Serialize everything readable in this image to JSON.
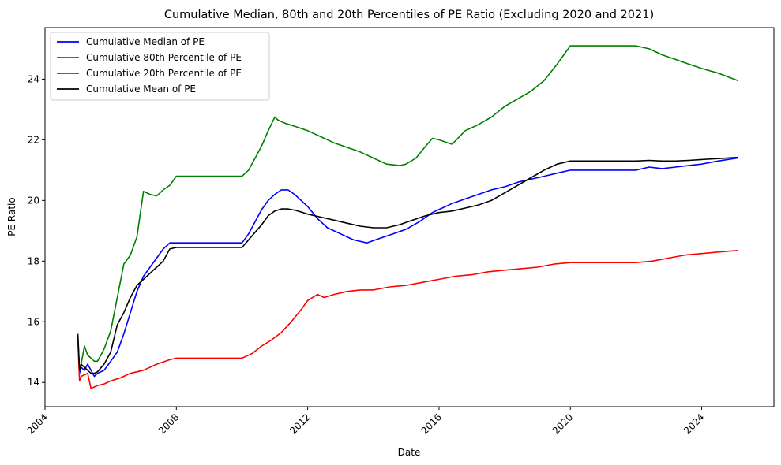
{
  "chart_data": {
    "type": "line",
    "title": "Cumulative Median, 80th and 20th Percentiles of PE Ratio (Excluding 2020 and 2021)",
    "xlabel": "Date",
    "ylabel": "PE Ratio",
    "xlim": [
      2004.0,
      2026.2
    ],
    "ylim": [
      13.2,
      25.7
    ],
    "xticks": [
      2004,
      2008,
      2012,
      2016,
      2020,
      2024
    ],
    "xtick_labels": [
      "2004",
      "2008",
      "2012",
      "2016",
      "2020",
      "2024"
    ],
    "yticks": [
      14,
      16,
      18,
      20,
      22,
      24
    ],
    "ytick_labels": [
      "14",
      "16",
      "18",
      "20",
      "22",
      "24"
    ],
    "grid": false,
    "legend_position": "top-left",
    "series": [
      {
        "name": "Cumulative Median of PE",
        "color": "#0000ff",
        "x": [
          2005.0,
          2005.05,
          2005.1,
          2005.2,
          2005.3,
          2005.4,
          2005.5,
          2005.6,
          2005.8,
          2006.0,
          2006.2,
          2006.4,
          2006.6,
          2006.8,
          2007.0,
          2007.2,
          2007.4,
          2007.6,
          2007.8,
          2008.0,
          2009.0,
          2010.0,
          2010.2,
          2010.4,
          2010.6,
          2010.8,
          2011.0,
          2011.2,
          2011.4,
          2011.6,
          2011.8,
          2012.0,
          2012.3,
          2012.6,
          2013.0,
          2013.4,
          2013.8,
          2014.2,
          2014.6,
          2015.0,
          2015.4,
          2015.8,
          2016.0,
          2016.4,
          2016.8,
          2017.2,
          2017.6,
          2018.0,
          2018.4,
          2018.8,
          2019.2,
          2019.6,
          2020.0,
          2021.0,
          2022.0,
          2022.4,
          2022.8,
          2023.2,
          2023.6,
          2024.0,
          2024.5,
          2025.1
        ],
        "y": [
          15.5,
          14.3,
          14.5,
          14.4,
          14.6,
          14.4,
          14.2,
          14.3,
          14.4,
          14.7,
          15.0,
          15.6,
          16.3,
          17.0,
          17.5,
          17.8,
          18.1,
          18.4,
          18.6,
          18.6,
          18.6,
          18.6,
          18.9,
          19.3,
          19.7,
          20.0,
          20.2,
          20.35,
          20.35,
          20.2,
          20.0,
          19.8,
          19.4,
          19.1,
          18.9,
          18.7,
          18.6,
          18.75,
          18.9,
          19.05,
          19.3,
          19.6,
          19.7,
          19.9,
          20.05,
          20.2,
          20.35,
          20.45,
          20.6,
          20.7,
          20.8,
          20.9,
          21.0,
          21.0,
          21.0,
          21.1,
          21.05,
          21.1,
          21.15,
          21.2,
          21.3,
          21.4
        ]
      },
      {
        "name": "Cumulative 80th Percentile of PE",
        "color": "#008000",
        "x": [
          2005.0,
          2005.05,
          2005.1,
          2005.2,
          2005.3,
          2005.4,
          2005.5,
          2005.6,
          2005.8,
          2006.0,
          2006.2,
          2006.4,
          2006.6,
          2006.8,
          2007.0,
          2007.2,
          2007.4,
          2007.6,
          2007.8,
          2008.0,
          2009.0,
          2010.0,
          2010.2,
          2010.4,
          2010.6,
          2010.8,
          2011.0,
          2011.1,
          2011.3,
          2011.6,
          2012.0,
          2012.4,
          2012.8,
          2013.2,
          2013.6,
          2014.0,
          2014.4,
          2014.8,
          2015.0,
          2015.3,
          2015.6,
          2015.8,
          2016.0,
          2016.4,
          2016.8,
          2017.2,
          2017.6,
          2018.0,
          2018.4,
          2018.8,
          2019.2,
          2019.6,
          2020.0,
          2021.0,
          2022.0,
          2022.4,
          2022.8,
          2023.2,
          2023.6,
          2024.0,
          2024.5,
          2025.1
        ],
        "y": [
          15.5,
          14.4,
          14.6,
          15.2,
          14.9,
          14.8,
          14.7,
          14.7,
          15.1,
          15.7,
          16.8,
          17.9,
          18.2,
          18.8,
          20.3,
          20.2,
          20.15,
          20.35,
          20.5,
          20.8,
          20.8,
          20.8,
          21.0,
          21.4,
          21.8,
          22.3,
          22.75,
          22.65,
          22.55,
          22.45,
          22.3,
          22.1,
          21.9,
          21.75,
          21.6,
          21.4,
          21.2,
          21.15,
          21.2,
          21.4,
          21.8,
          22.05,
          22.0,
          21.85,
          22.3,
          22.5,
          22.75,
          23.1,
          23.35,
          23.6,
          23.95,
          24.5,
          25.1,
          25.1,
          25.1,
          25.0,
          24.8,
          24.65,
          24.5,
          24.35,
          24.2,
          23.95
        ]
      },
      {
        "name": "Cumulative 20th Percentile of PE",
        "color": "#ff0000",
        "x": [
          2005.0,
          2005.05,
          2005.1,
          2005.2,
          2005.3,
          2005.4,
          2005.5,
          2005.6,
          2005.8,
          2006.0,
          2006.3,
          2006.6,
          2007.0,
          2007.4,
          2007.8,
          2008.0,
          2009.0,
          2010.0,
          2010.3,
          2010.6,
          2010.9,
          2011.2,
          2011.5,
          2011.8,
          2012.0,
          2012.3,
          2012.5,
          2012.8,
          2013.2,
          2013.6,
          2014.0,
          2014.5,
          2015.0,
          2015.5,
          2016.0,
          2016.5,
          2017.0,
          2017.5,
          2018.0,
          2018.5,
          2019.0,
          2019.5,
          2020.0,
          2021.0,
          2022.0,
          2022.5,
          2023.0,
          2023.5,
          2024.0,
          2024.5,
          2025.1
        ],
        "y": [
          15.4,
          14.05,
          14.2,
          14.25,
          14.3,
          13.8,
          13.85,
          13.9,
          13.95,
          14.05,
          14.15,
          14.3,
          14.4,
          14.6,
          14.75,
          14.8,
          14.8,
          14.8,
          14.95,
          15.2,
          15.4,
          15.65,
          16.0,
          16.4,
          16.7,
          16.9,
          16.8,
          16.9,
          17.0,
          17.05,
          17.05,
          17.15,
          17.2,
          17.3,
          17.4,
          17.5,
          17.55,
          17.65,
          17.7,
          17.75,
          17.8,
          17.9,
          17.95,
          17.95,
          17.95,
          18.0,
          18.1,
          18.2,
          18.25,
          18.3,
          18.35
        ]
      },
      {
        "name": "Cumulative Mean of PE",
        "color": "#000000",
        "x": [
          2005.0,
          2005.05,
          2005.1,
          2005.2,
          2005.3,
          2005.4,
          2005.5,
          2005.6,
          2005.8,
          2006.0,
          2006.2,
          2006.4,
          2006.6,
          2006.8,
          2007.0,
          2007.2,
          2007.4,
          2007.6,
          2007.8,
          2008.0,
          2009.0,
          2010.0,
          2010.2,
          2010.4,
          2010.6,
          2010.8,
          2011.0,
          2011.2,
          2011.4,
          2011.6,
          2011.8,
          2012.0,
          2012.4,
          2012.8,
          2013.2,
          2013.6,
          2014.0,
          2014.4,
          2014.8,
          2015.2,
          2015.6,
          2016.0,
          2016.4,
          2016.8,
          2017.2,
          2017.6,
          2018.0,
          2018.4,
          2018.8,
          2019.2,
          2019.6,
          2020.0,
          2021.0,
          2022.0,
          2022.4,
          2022.8,
          2023.2,
          2023.6,
          2024.0,
          2024.5,
          2025.1
        ],
        "y": [
          15.6,
          14.4,
          14.6,
          14.5,
          14.4,
          14.3,
          14.3,
          14.35,
          14.6,
          15.0,
          15.9,
          16.3,
          16.8,
          17.2,
          17.4,
          17.6,
          17.8,
          18.0,
          18.4,
          18.45,
          18.45,
          18.45,
          18.7,
          18.95,
          19.2,
          19.5,
          19.65,
          19.72,
          19.72,
          19.68,
          19.62,
          19.55,
          19.45,
          19.35,
          19.25,
          19.15,
          19.1,
          19.1,
          19.2,
          19.35,
          19.5,
          19.6,
          19.65,
          19.75,
          19.85,
          20.0,
          20.25,
          20.5,
          20.75,
          21.0,
          21.2,
          21.3,
          21.3,
          21.3,
          21.32,
          21.3,
          21.3,
          21.32,
          21.35,
          21.38,
          21.42
        ]
      }
    ]
  }
}
